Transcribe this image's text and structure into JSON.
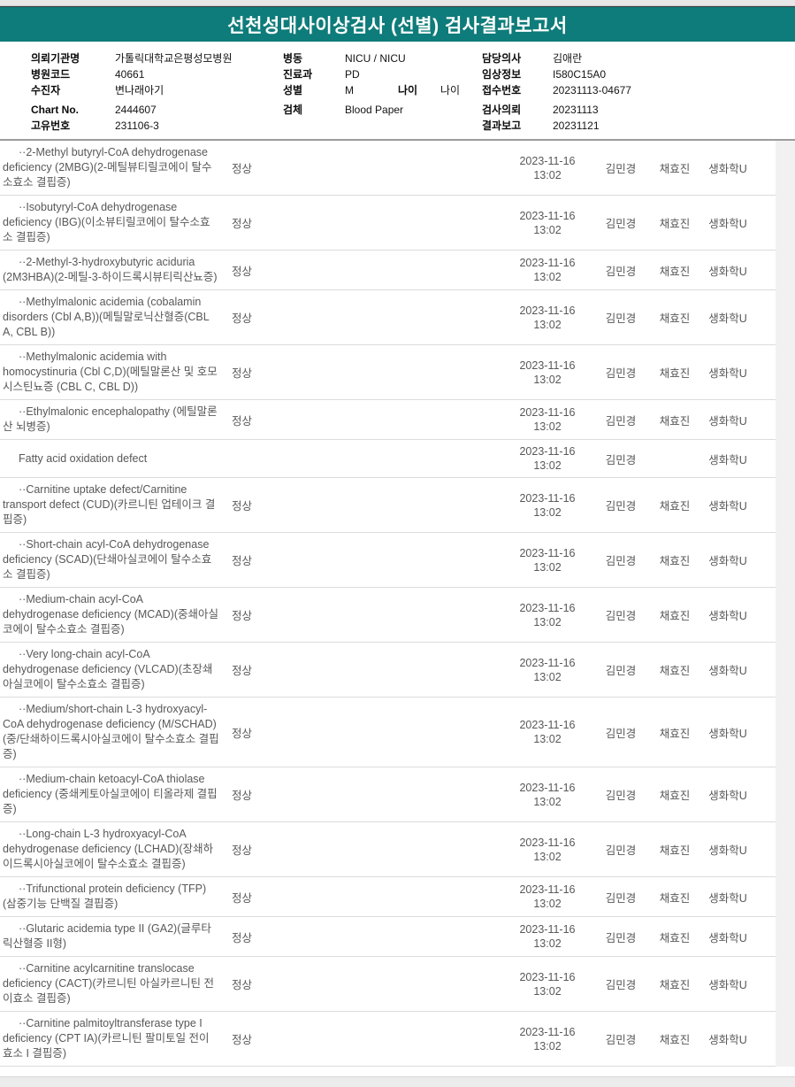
{
  "title": "선천성대사이상검사 (선별) 검사결과보고서",
  "colors": {
    "header_teal": "#0e7c7a",
    "table_text_gray": "#58585a",
    "divider_gray": "#9c9c9c"
  },
  "patient_info": {
    "col1": [
      {
        "label": "의뢰기관명",
        "value": "가톨릭대학교은평성모병원"
      },
      {
        "label": "병원코드",
        "value": "40661"
      },
      {
        "label": "수진자",
        "value": "변나래아기"
      },
      {
        "label": "Chart No.",
        "value": "2444607"
      },
      {
        "label": "고유번호",
        "value": "231106-3"
      }
    ],
    "col2": [
      {
        "label": "병동",
        "value": "NICU / NICU"
      },
      {
        "label": "진료과",
        "value": "PD"
      },
      {
        "label": "성별",
        "value": "M",
        "label2": "나이",
        "value2": "나이"
      },
      {
        "label": "검체",
        "value": "Blood Paper"
      }
    ],
    "col3": [
      {
        "label": "담당의사",
        "value": "김애란"
      },
      {
        "label": "임상정보",
        "value": "I580C15A0"
      },
      {
        "label": "접수번호",
        "value": "20231113-04677"
      },
      {
        "label": "검사의뢰",
        "value": "20231113"
      },
      {
        "label": "결과보고",
        "value": "20231121"
      }
    ]
  },
  "results": [
    {
      "name": "··2-Methyl butyryl-CoA dehydrogenase deficiency (2MBG)(2-메틸뷰티릴코에이 탈수소효소 결핍증)",
      "result": "정상",
      "date": "2023-11-16",
      "time": "13:02",
      "tester": "김민경",
      "checker": "채효진",
      "lab": "생화학U"
    },
    {
      "name": "··Isobutyryl-CoA dehydrogenase deficiency (IBG)(이소뷰티릴코에이 탈수소효소 결핍증)",
      "result": "정상",
      "date": "2023-11-16",
      "time": "13:02",
      "tester": "김민경",
      "checker": "채효진",
      "lab": "생화학U"
    },
    {
      "name": "··2-Methyl-3-hydroxybutyric aciduria (2M3HBA)(2-메틸-3-하이드록시뷰티릭산뇨증)",
      "result": "정상",
      "date": "2023-11-16",
      "time": "13:02",
      "tester": "김민경",
      "checker": "채효진",
      "lab": "생화학U"
    },
    {
      "name": "··Methylmalonic acidemia (cobalamin disorders (Cbl A,B))(메틸말로닉산혈증(CBL A, CBL B))",
      "result": "정상",
      "date": "2023-11-16",
      "time": "13:02",
      "tester": "김민경",
      "checker": "채효진",
      "lab": "생화학U"
    },
    {
      "name": "··Methylmalonic acidemia with homocystinuria (Cbl C,D)(메틸말론산 및 호모시스틴뇨증 (CBL C, CBL D))",
      "result": "정상",
      "date": "2023-11-16",
      "time": "13:02",
      "tester": "김민경",
      "checker": "채효진",
      "lab": "생화학U"
    },
    {
      "name": "··Ethylmalonic encephalopathy (에틸말론산 뇌병증)",
      "result": "정상",
      "date": "2023-11-16",
      "time": "13:02",
      "tester": "김민경",
      "checker": "채효진",
      "lab": "생화학U"
    },
    {
      "name": "Fatty acid oxidation defect",
      "result": "",
      "date": "2023-11-16",
      "time": "13:02",
      "tester": "김민경",
      "checker": "",
      "lab": "생화학U"
    },
    {
      "name": "··Carnitine uptake defect/Carnitine transport defect (CUD)(카르니틴 업테이크 결핍증)",
      "result": "정상",
      "date": "2023-11-16",
      "time": "13:02",
      "tester": "김민경",
      "checker": "채효진",
      "lab": "생화학U"
    },
    {
      "name": "··Short-chain acyl-CoA dehydrogenase deficiency (SCAD)(단쇄아실코에이 탈수소효소 결핍증)",
      "result": "정상",
      "date": "2023-11-16",
      "time": "13:02",
      "tester": "김민경",
      "checker": "채효진",
      "lab": "생화학U"
    },
    {
      "name": "··Medium-chain acyl-CoA dehydrogenase deficiency (MCAD)(중쇄아실코에이 탈수소효소 결핍증)",
      "result": "정상",
      "date": "2023-11-16",
      "time": "13:02",
      "tester": "김민경",
      "checker": "채효진",
      "lab": "생화학U"
    },
    {
      "name": "··Very long-chain acyl-CoA dehydrogenase deficiency (VLCAD)(초장쇄아실코에이 탈수소효소 결핍증)",
      "result": "정상",
      "date": "2023-11-16",
      "time": "13:02",
      "tester": "김민경",
      "checker": "채효진",
      "lab": "생화학U"
    },
    {
      "name": "··Medium/short-chain L-3 hydroxyacyl-CoA dehydrogenase deficiency (M/SCHAD)(중/단쇄하이드록시아실코에이 탈수소효소 결핍증)",
      "result": "정상",
      "date": "2023-11-16",
      "time": "13:02",
      "tester": "김민경",
      "checker": "채효진",
      "lab": "생화학U"
    },
    {
      "name": "··Medium-chain ketoacyl-CoA thiolase deficiency (중쇄케토아실코에이 티올라제 결핍증)",
      "result": "정상",
      "date": "2023-11-16",
      "time": "13:02",
      "tester": "김민경",
      "checker": "채효진",
      "lab": "생화학U"
    },
    {
      "name": "··Long-chain L-3 hydroxyacyl-CoA dehydrogenase deficiency (LCHAD)(장쇄하이드록시아실코에이 탈수소효소 결핍증)",
      "result": "정상",
      "date": "2023-11-16",
      "time": "13:02",
      "tester": "김민경",
      "checker": "채효진",
      "lab": "생화학U"
    },
    {
      "name": "··Trifunctional protein deficiency (TFP)(삼중기능 단백질 결핍증)",
      "result": "정상",
      "date": "2023-11-16",
      "time": "13:02",
      "tester": "김민경",
      "checker": "채효진",
      "lab": "생화학U"
    },
    {
      "name": "··Glutaric acidemia type II (GA2)(글루타릭산혈증 II형)",
      "result": "정상",
      "date": "2023-11-16",
      "time": "13:02",
      "tester": "김민경",
      "checker": "채효진",
      "lab": "생화학U"
    },
    {
      "name": "··Carnitine acylcarnitine translocase deficiency (CACT)(카르니틴 아실카르니틴 전이효소 결핍증)",
      "result": "정상",
      "date": "2023-11-16",
      "time": "13:02",
      "tester": "김민경",
      "checker": "채효진",
      "lab": "생화학U"
    },
    {
      "name": "··Carnitine palmitoyltransferase type I deficiency (CPT IA)(카르니틴 팔미토일 전이효소 I 결핍증)",
      "result": "정상",
      "date": "2023-11-16",
      "time": "13:02",
      "tester": "김민경",
      "checker": "채효진",
      "lab": "생화학U"
    }
  ]
}
